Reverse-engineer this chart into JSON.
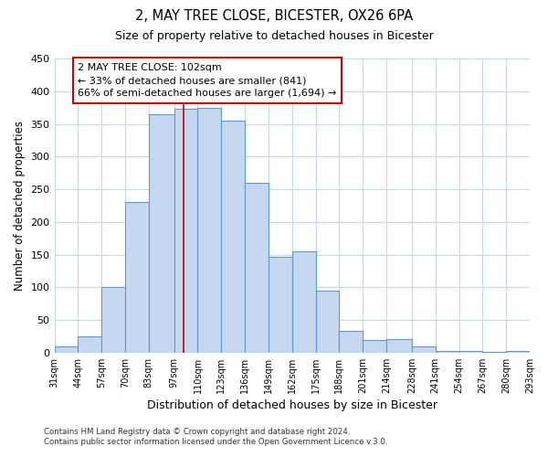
{
  "title": "2, MAY TREE CLOSE, BICESTER, OX26 6PA",
  "subtitle": "Size of property relative to detached houses in Bicester",
  "xlabel": "Distribution of detached houses by size in Bicester",
  "ylabel": "Number of detached properties",
  "bin_labels": [
    "31sqm",
    "44sqm",
    "57sqm",
    "70sqm",
    "83sqm",
    "97sqm",
    "110sqm",
    "123sqm",
    "136sqm",
    "149sqm",
    "162sqm",
    "175sqm",
    "188sqm",
    "201sqm",
    "214sqm",
    "228sqm",
    "241sqm",
    "254sqm",
    "267sqm",
    "280sqm",
    "293sqm"
  ],
  "bin_edges": [
    31,
    44,
    57,
    70,
    83,
    97,
    110,
    123,
    136,
    149,
    162,
    175,
    188,
    201,
    214,
    228,
    241,
    254,
    267,
    280,
    293
  ],
  "bar_heights": [
    10,
    25,
    100,
    230,
    365,
    373,
    375,
    355,
    260,
    147,
    155,
    95,
    33,
    20,
    21,
    10,
    3,
    3,
    1,
    2
  ],
  "bar_color": "#c5d8f0",
  "bar_edge_color": "#5b9bd5",
  "property_sqm": 102,
  "vline_color": "#cc0000",
  "annotation_line1": "2 MAY TREE CLOSE: 102sqm",
  "annotation_line2": "← 33% of detached houses are smaller (841)",
  "annotation_line3": "66% of semi-detached houses are larger (1,694) →",
  "annotation_box_color": "#ffffff",
  "annotation_box_edge_color": "#cc0000",
  "ylim": [
    0,
    450
  ],
  "yticks": [
    0,
    50,
    100,
    150,
    200,
    250,
    300,
    350,
    400,
    450
  ],
  "footer1": "Contains HM Land Registry data © Crown copyright and database right 2024.",
  "footer2": "Contains public sector information licensed under the Open Government Licence v.3.0.",
  "background_color": "#ffffff",
  "grid_color": "#c5d8f0"
}
